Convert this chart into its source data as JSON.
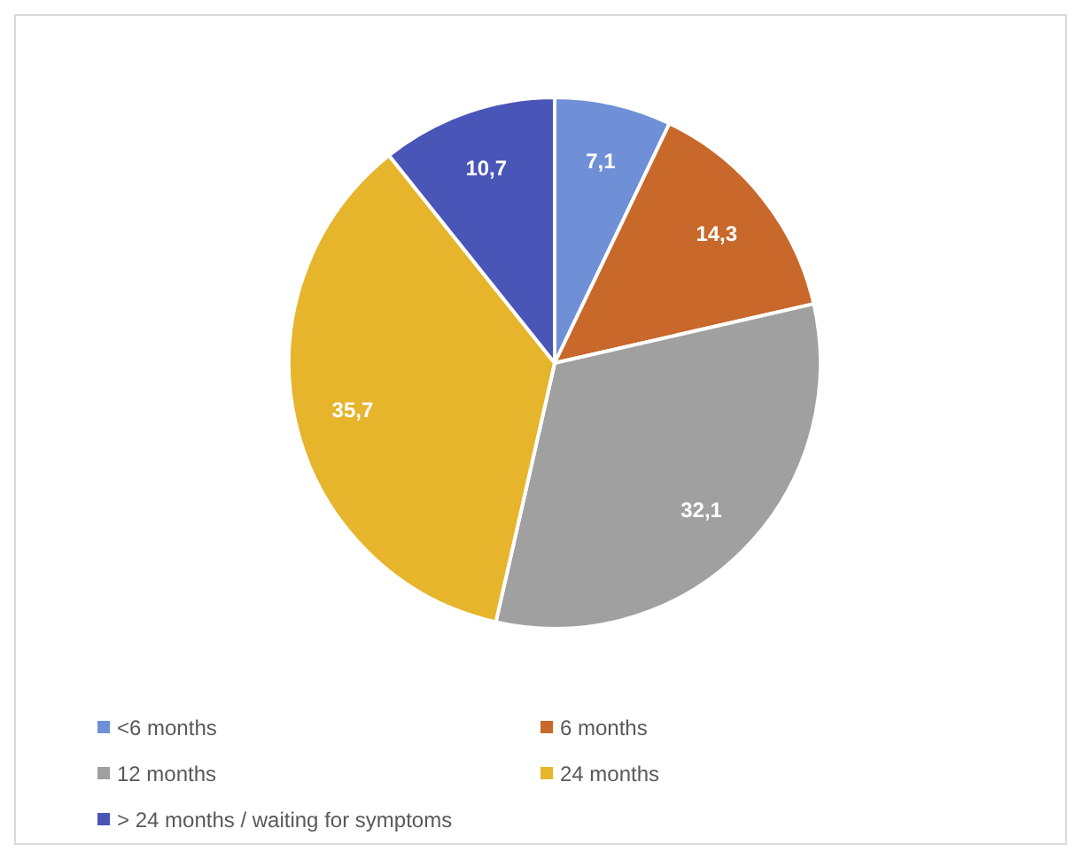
{
  "chart_data": {
    "type": "pie",
    "categories": [
      "<6 months",
      "6 months",
      "12 months",
      "24 months",
      "> 24 months / waiting for symptoms"
    ],
    "values": [
      7.1,
      14.3,
      32.1,
      35.7,
      10.7
    ],
    "value_labels": [
      "7,1",
      "14,3",
      "32,1",
      "35,7",
      "10,7"
    ],
    "colors": [
      "#6f8fd6",
      "#c8682a",
      "#a0a0a0",
      "#e6b52c",
      "#4a55b8"
    ],
    "legend": "bottom"
  }
}
